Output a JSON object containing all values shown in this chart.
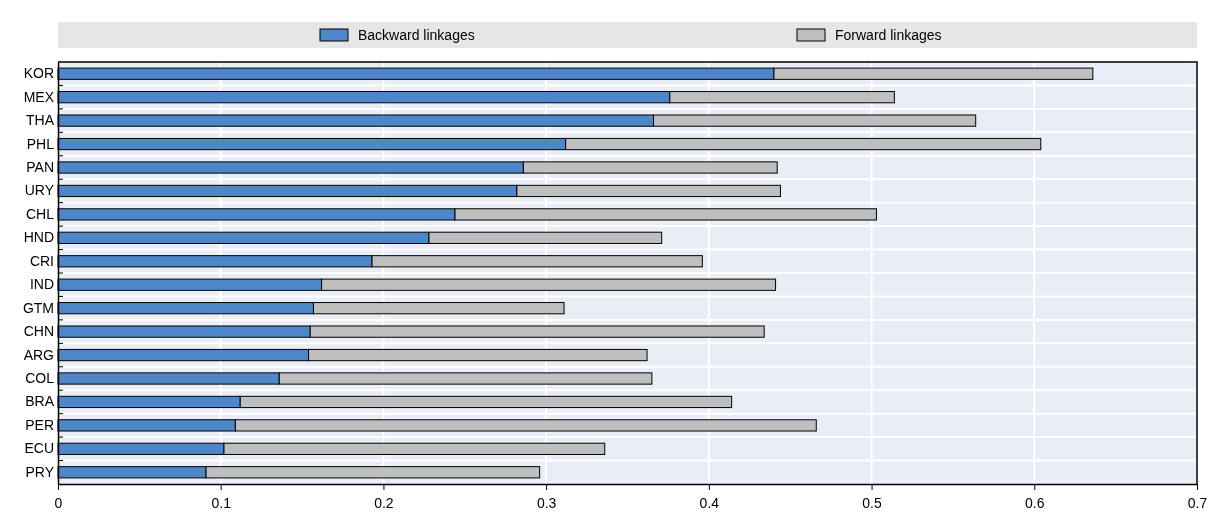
{
  "chart_data": {
    "type": "bar",
    "orientation": "horizontal",
    "stacked": true,
    "categories": [
      "KOR",
      "MEX",
      "THA",
      "PHL",
      "PAN",
      "URY",
      "CHL",
      "HND",
      "CRI",
      "IND",
      "GTM",
      "CHN",
      "ARG",
      "COL",
      "BRA",
      "PER",
      "ECU",
      "PRY"
    ],
    "series": [
      {
        "name": "Backward linkages",
        "color": "#4e87c7",
        "values": [
          0.44,
          0.376,
          0.366,
          0.312,
          0.286,
          0.282,
          0.244,
          0.228,
          0.193,
          0.162,
          0.157,
          0.155,
          0.154,
          0.136,
          0.112,
          0.109,
          0.102,
          0.091
        ]
      },
      {
        "name": "Forward linkages",
        "color": "#bfbfbf",
        "values": [
          0.196,
          0.138,
          0.198,
          0.292,
          0.156,
          0.162,
          0.259,
          0.143,
          0.203,
          0.279,
          0.154,
          0.279,
          0.208,
          0.229,
          0.302,
          0.357,
          0.234,
          0.205
        ]
      }
    ],
    "xlim": [
      0,
      0.7
    ],
    "xticks": [
      0,
      0.1,
      0.2,
      0.3,
      0.4,
      0.5,
      0.6,
      0.7
    ],
    "grid": true,
    "legend": "top"
  }
}
